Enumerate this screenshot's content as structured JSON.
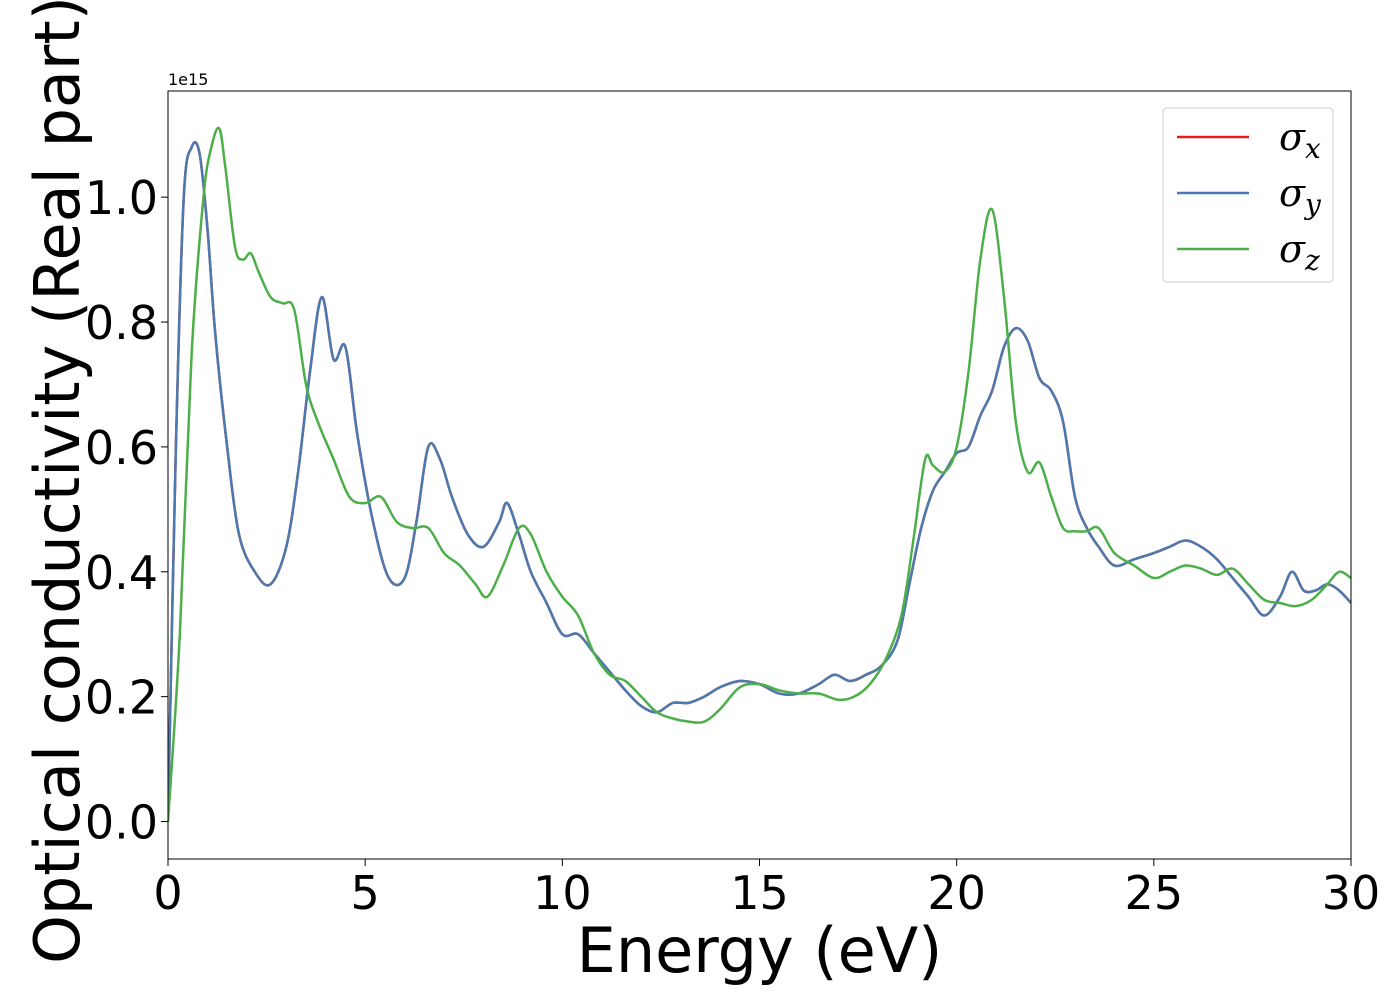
{
  "chart_data": {
    "type": "line",
    "xlabel": "Energy (eV)",
    "ylabel": "Optical conductivity (Real part)",
    "offset_text": "1e15",
    "xlim": [
      0,
      30
    ],
    "ylim": [
      -0.06,
      1.17
    ],
    "y_scale_factor": 1000000000000000.0,
    "x_ticks": [
      0,
      5,
      10,
      15,
      20,
      25,
      30
    ],
    "x_tick_labels": [
      "0",
      "5",
      "10",
      "15",
      "20",
      "25",
      "30"
    ],
    "y_ticks": [
      0.0,
      0.2,
      0.4,
      0.6,
      0.8,
      1.0
    ],
    "y_tick_labels": [
      "0.0",
      "0.2",
      "0.4",
      "0.6",
      "0.8",
      "1.0"
    ],
    "grid": false,
    "legend_position": "top-right",
    "series": [
      {
        "name": "σx",
        "legend_base": "σ",
        "legend_sub": "x",
        "color": "#e41a1c",
        "x": [
          0,
          0.2,
          0.4,
          0.6,
          0.8,
          1.0,
          1.2,
          1.5,
          1.8,
          2.2,
          2.6,
          3.0,
          3.3,
          3.6,
          3.9,
          4.2,
          4.5,
          4.8,
          5.2,
          5.6,
          6.0,
          6.3,
          6.6,
          6.9,
          7.2,
          7.6,
          8.0,
          8.4,
          8.6,
          8.9,
          9.2,
          9.6,
          10.0,
          10.4,
          10.8,
          11.2,
          11.6,
          12.0,
          12.4,
          12.8,
          13.2,
          13.6,
          14.0,
          14.5,
          15.0,
          15.5,
          16.0,
          16.5,
          16.9,
          17.3,
          17.7,
          18.1,
          18.5,
          18.8,
          19.1,
          19.4,
          19.7,
          20.0,
          20.3,
          20.6,
          20.9,
          21.2,
          21.5,
          21.8,
          22.1,
          22.4,
          22.7,
          23.0,
          23.3,
          23.6,
          24.0,
          24.5,
          25.0,
          25.4,
          25.8,
          26.2,
          26.6,
          27.0,
          27.4,
          27.8,
          28.2,
          28.5,
          28.8,
          29.1,
          29.4,
          29.7,
          30.0
        ],
        "y": [
          0.0,
          0.6,
          1.0,
          1.08,
          1.07,
          0.95,
          0.78,
          0.6,
          0.46,
          0.4,
          0.38,
          0.44,
          0.56,
          0.72,
          0.84,
          0.74,
          0.76,
          0.62,
          0.48,
          0.39,
          0.39,
          0.48,
          0.6,
          0.58,
          0.52,
          0.46,
          0.44,
          0.48,
          0.51,
          0.46,
          0.4,
          0.35,
          0.3,
          0.3,
          0.27,
          0.24,
          0.21,
          0.185,
          0.175,
          0.19,
          0.19,
          0.2,
          0.215,
          0.225,
          0.22,
          0.205,
          0.205,
          0.22,
          0.235,
          0.225,
          0.235,
          0.25,
          0.29,
          0.38,
          0.47,
          0.53,
          0.56,
          0.59,
          0.6,
          0.65,
          0.69,
          0.76,
          0.79,
          0.77,
          0.71,
          0.69,
          0.64,
          0.52,
          0.47,
          0.44,
          0.41,
          0.42,
          0.43,
          0.44,
          0.45,
          0.44,
          0.42,
          0.39,
          0.36,
          0.33,
          0.36,
          0.4,
          0.37,
          0.37,
          0.38,
          0.37,
          0.35
        ]
      },
      {
        "name": "σy",
        "legend_base": "σ",
        "legend_sub": "y",
        "color": "#4a7aaf",
        "x": [
          0,
          0.2,
          0.4,
          0.6,
          0.8,
          1.0,
          1.2,
          1.5,
          1.8,
          2.2,
          2.6,
          3.0,
          3.3,
          3.6,
          3.9,
          4.2,
          4.5,
          4.8,
          5.2,
          5.6,
          6.0,
          6.3,
          6.6,
          6.9,
          7.2,
          7.6,
          8.0,
          8.4,
          8.6,
          8.9,
          9.2,
          9.6,
          10.0,
          10.4,
          10.8,
          11.2,
          11.6,
          12.0,
          12.4,
          12.8,
          13.2,
          13.6,
          14.0,
          14.5,
          15.0,
          15.5,
          16.0,
          16.5,
          16.9,
          17.3,
          17.7,
          18.1,
          18.5,
          18.8,
          19.1,
          19.4,
          19.7,
          20.0,
          20.3,
          20.6,
          20.9,
          21.2,
          21.5,
          21.8,
          22.1,
          22.4,
          22.7,
          23.0,
          23.3,
          23.6,
          24.0,
          24.5,
          25.0,
          25.4,
          25.8,
          26.2,
          26.6,
          27.0,
          27.4,
          27.8,
          28.2,
          28.5,
          28.8,
          29.1,
          29.4,
          29.7,
          30.0
        ],
        "y": [
          0.0,
          0.6,
          1.0,
          1.08,
          1.07,
          0.95,
          0.78,
          0.6,
          0.46,
          0.4,
          0.38,
          0.44,
          0.56,
          0.72,
          0.84,
          0.74,
          0.76,
          0.62,
          0.48,
          0.39,
          0.39,
          0.48,
          0.6,
          0.58,
          0.52,
          0.46,
          0.44,
          0.48,
          0.51,
          0.46,
          0.4,
          0.35,
          0.3,
          0.3,
          0.27,
          0.24,
          0.21,
          0.185,
          0.175,
          0.19,
          0.19,
          0.2,
          0.215,
          0.225,
          0.22,
          0.205,
          0.205,
          0.22,
          0.235,
          0.225,
          0.235,
          0.25,
          0.29,
          0.38,
          0.47,
          0.53,
          0.56,
          0.59,
          0.6,
          0.65,
          0.69,
          0.76,
          0.79,
          0.77,
          0.71,
          0.69,
          0.64,
          0.52,
          0.47,
          0.44,
          0.41,
          0.42,
          0.43,
          0.44,
          0.45,
          0.44,
          0.42,
          0.39,
          0.36,
          0.33,
          0.36,
          0.4,
          0.37,
          0.37,
          0.38,
          0.37,
          0.35
        ]
      },
      {
        "name": "σz",
        "legend_base": "σ",
        "legend_sub": "z",
        "color": "#4daf4a",
        "x": [
          0,
          0.3,
          0.6,
          0.9,
          1.1,
          1.3,
          1.45,
          1.7,
          1.9,
          2.1,
          2.3,
          2.6,
          2.9,
          3.2,
          3.5,
          3.8,
          4.2,
          4.6,
          5.0,
          5.4,
          5.8,
          6.2,
          6.6,
          7.0,
          7.4,
          7.8,
          8.1,
          8.5,
          8.9,
          9.2,
          9.6,
          10.0,
          10.4,
          10.8,
          11.2,
          11.6,
          12.0,
          12.4,
          12.8,
          13.2,
          13.6,
          14.0,
          14.5,
          15.0,
          15.5,
          16.0,
          16.5,
          17.0,
          17.4,
          17.8,
          18.2,
          18.6,
          18.9,
          19.2,
          19.4,
          19.7,
          20.0,
          20.3,
          20.6,
          20.9,
          21.2,
          21.5,
          21.8,
          22.1,
          22.4,
          22.7,
          23.0,
          23.3,
          23.6,
          24.0,
          24.5,
          25.0,
          25.4,
          25.8,
          26.2,
          26.6,
          27.0,
          27.4,
          27.8,
          28.2,
          28.6,
          29.0,
          29.4,
          29.7,
          30.0
        ],
        "y": [
          0.0,
          0.3,
          0.75,
          1.0,
          1.08,
          1.11,
          1.05,
          0.92,
          0.9,
          0.91,
          0.88,
          0.84,
          0.83,
          0.82,
          0.7,
          0.64,
          0.58,
          0.52,
          0.51,
          0.52,
          0.48,
          0.47,
          0.47,
          0.43,
          0.41,
          0.38,
          0.36,
          0.41,
          0.47,
          0.46,
          0.4,
          0.36,
          0.33,
          0.27,
          0.235,
          0.225,
          0.2,
          0.175,
          0.165,
          0.16,
          0.16,
          0.18,
          0.215,
          0.22,
          0.21,
          0.205,
          0.205,
          0.195,
          0.2,
          0.22,
          0.26,
          0.33,
          0.45,
          0.58,
          0.57,
          0.56,
          0.6,
          0.72,
          0.9,
          0.98,
          0.84,
          0.64,
          0.56,
          0.575,
          0.52,
          0.47,
          0.465,
          0.465,
          0.47,
          0.43,
          0.41,
          0.39,
          0.4,
          0.41,
          0.405,
          0.395,
          0.405,
          0.38,
          0.355,
          0.35,
          0.345,
          0.355,
          0.38,
          0.4,
          0.39
        ]
      }
    ]
  }
}
